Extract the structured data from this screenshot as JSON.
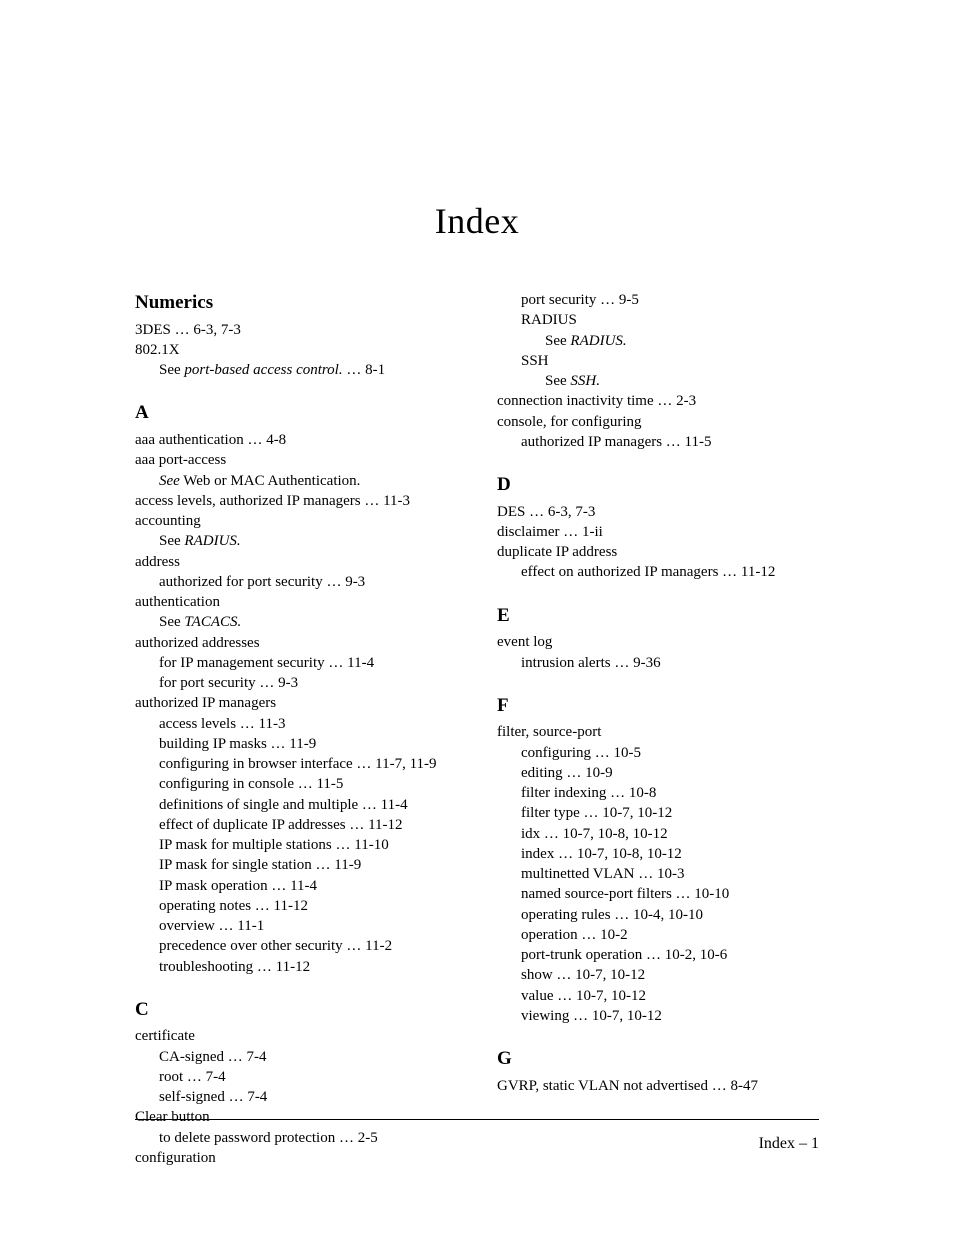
{
  "title": "Index",
  "footer": "Index – 1",
  "left": {
    "numerics": {
      "heading": "Numerics",
      "l1": "3DES … 6-3, 7-3",
      "l2": "802.1X",
      "l3_a": "See ",
      "l3_b": "port-based access control.",
      "l3_c": " … 8-1"
    },
    "A": {
      "heading": "A",
      "l1": "aaa authentication … 4-8",
      "l2": "aaa port-access",
      "l3_a": "See",
      "l3_b": " Web or MAC Authentication.",
      "l4": "access levels, authorized IP managers … 11-3",
      "l5": "accounting",
      "l6_a": "See ",
      "l6_b": "RADIUS.",
      "l7": "address",
      "l8": "authorized for port security … 9-3",
      "l9": "authentication",
      "l10_a": "See ",
      "l10_b": "TACACS.",
      "l11": "authorized addresses",
      "l12": "for IP management security … 11-4",
      "l13": "for port security … 9-3",
      "l14": "authorized IP managers",
      "l15": "access levels … 11-3",
      "l16": "building IP masks … 11-9",
      "l17": "configuring in browser interface … 11-7, 11-9",
      "l18": "configuring in console … 11-5",
      "l19": "definitions of single and multiple … 11-4",
      "l20": "effect of duplicate IP addresses … 11-12",
      "l21": "IP mask for multiple stations … 11-10",
      "l22": "IP mask for single station … 11-9",
      "l23": "IP mask operation … 11-4",
      "l24": "operating notes … 11-12",
      "l25": "overview … 11-1",
      "l26": "precedence over other security … 11-2",
      "l27": "troubleshooting … 11-12"
    },
    "C": {
      "heading": "C",
      "l1": "certificate",
      "l2": "CA-signed … 7-4",
      "l3": "root … 7-4",
      "l4": "self-signed … 7-4",
      "l5": "Clear button",
      "l6": "to delete password protection … 2-5",
      "l7": "configuration"
    }
  },
  "right": {
    "cont": {
      "l1": "port security … 9-5",
      "l2": "RADIUS",
      "l3_a": "See ",
      "l3_b": "RADIUS.",
      "l4": "SSH",
      "l5_a": "See ",
      "l5_b": "SSH.",
      "l6": "connection inactivity time … 2-3",
      "l7": "console, for configuring",
      "l8": "authorized IP managers … 11-5"
    },
    "D": {
      "heading": "D",
      "l1": "DES … 6-3, 7-3",
      "l2": "disclaimer … 1-ii",
      "l3": "duplicate IP address",
      "l4": "effect on authorized IP managers … 11-12"
    },
    "E": {
      "heading": "E",
      "l1": "event log",
      "l2": "intrusion alerts … 9-36"
    },
    "F": {
      "heading": "F",
      "l1": "filter, source-port",
      "l2": "configuring … 10-5",
      "l3": "editing … 10-9",
      "l4": "filter indexing … 10-8",
      "l5": "filter type … 10-7, 10-12",
      "l6": "idx … 10-7, 10-8, 10-12",
      "l7": "index … 10-7, 10-8, 10-12",
      "l8": "multinetted VLAN … 10-3",
      "l9": "named source-port filters … 10-10",
      "l10": "operating rules … 10-4, 10-10",
      "l11": "operation … 10-2",
      "l12": "port-trunk operation … 10-2, 10-6",
      "l13": "show … 10-7, 10-12",
      "l14": "value … 10-7, 10-12",
      "l15": "viewing … 10-7, 10-12"
    },
    "G": {
      "heading": "G",
      "l1": "GVRP, static VLAN not advertised … 8-47"
    }
  }
}
